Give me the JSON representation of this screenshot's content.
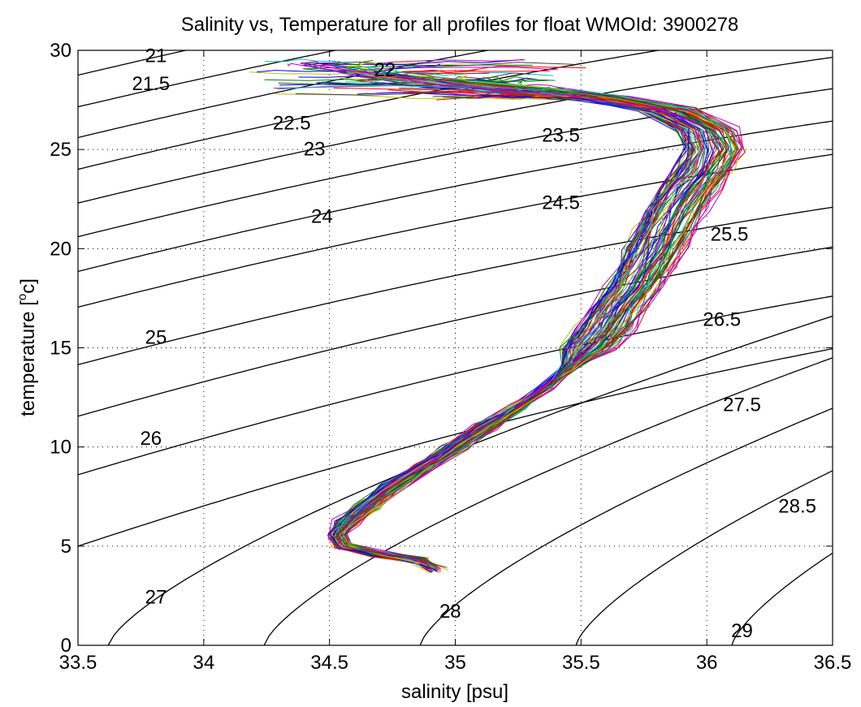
{
  "chart_data": {
    "type": "line",
    "title": "Salinity vs, Temperature for all profiles for float WMOId: 3900278",
    "xlabel": "salinity [psu]",
    "ylabel_main": "temperature [",
    "ylabel_sup": "o",
    "ylabel_end": "c]",
    "xlim": [
      33.5,
      36.5
    ],
    "ylim": [
      0,
      30
    ],
    "x_ticks": [
      33.5,
      34,
      34.5,
      35,
      35.5,
      36,
      36.5
    ],
    "x_tick_labels": [
      "33.5",
      "34",
      "34.5",
      "35",
      "35.5",
      "36",
      "36.5"
    ],
    "y_ticks": [
      0,
      5,
      10,
      15,
      20,
      25,
      30
    ],
    "y_tick_labels": [
      "0",
      "5",
      "10",
      "15",
      "20",
      "25",
      "30"
    ],
    "grid": true,
    "grid_style": "dotted",
    "profile_colors": [
      "#0000ff",
      "#008000",
      "#ff0000",
      "#00bfbf",
      "#bf00bf",
      "#bfbf00",
      "#404040"
    ],
    "profile_count": 84,
    "profile_mean_curve": {
      "temperature": [
        3.8,
        4.3,
        4.6,
        5.0,
        5.5,
        6.2,
        7.0,
        8.0,
        9.0,
        10.0,
        11.0,
        12.0,
        13.0,
        14.0,
        15.0,
        16.0,
        17.0,
        18.0,
        19.0,
        20.0,
        21.0,
        22.0,
        23.0,
        24.0,
        25.0,
        26.0,
        27.0,
        27.6,
        28.0,
        28.4,
        28.8,
        29.2
      ],
      "salinity": [
        34.93,
        34.85,
        34.7,
        34.55,
        34.53,
        34.57,
        34.65,
        34.75,
        34.88,
        35.0,
        35.12,
        35.25,
        35.36,
        35.45,
        35.53,
        35.6,
        35.65,
        35.71,
        35.76,
        35.8,
        35.84,
        35.88,
        35.93,
        35.99,
        36.03,
        36.0,
        35.85,
        35.6,
        35.3,
        35.0,
        34.7,
        34.5
      ]
    },
    "isopycnals": [
      {
        "label": "21",
        "s0": 33.5,
        "t0": 28.75,
        "slope": 3.0,
        "label_s": 33.81,
        "label_t": 29.4
      },
      {
        "label": "21.5",
        "s0": 33.5,
        "t0": 27.15,
        "slope": 3.0,
        "label_s": 33.79,
        "label_t": 28.0
      },
      {
        "label": "22",
        "s0": 33.5,
        "t0": 25.6,
        "slope": 3.05,
        "label_s": 34.72,
        "label_t": 28.7
      },
      {
        "label": "22.5",
        "s0": 33.5,
        "t0": 24.0,
        "slope": 3.1,
        "label_s": 34.35,
        "label_t": 26.0
      },
      {
        "label": "23",
        "s0": 33.5,
        "t0": 22.3,
        "slope": 3.1,
        "label_s": 34.44,
        "label_t": 24.7
      },
      {
        "label": "23.5",
        "s0": 33.5,
        "t0": 20.6,
        "slope": 3.15,
        "label_s": 35.42,
        "label_t": 25.4
      },
      {
        "label": "24",
        "s0": 33.5,
        "t0": 18.85,
        "slope": 3.2,
        "label_s": 34.47,
        "label_t": 21.3
      },
      {
        "label": "24.5",
        "s0": 33.5,
        "t0": 17.05,
        "slope": 3.25,
        "label_s": 35.42,
        "label_t": 22.0
      },
      {
        "label": "25",
        "s0": 33.5,
        "t0": 14.15,
        "slope": 3.35,
        "label_s": 33.81,
        "label_t": 15.2
      },
      {
        "label": "25.5",
        "s0": 33.5,
        "t0": 11.55,
        "slope": 3.6,
        "label_s": 36.09,
        "label_t": 20.4
      },
      {
        "label": "26",
        "s0": 33.5,
        "t0": 8.6,
        "slope": 3.8,
        "label_s": 33.79,
        "label_t": 10.1
      },
      {
        "label": "26.5",
        "s0": 33.5,
        "t0": 5.0,
        "slope": 4.2,
        "label_s": 36.06,
        "label_t": 16.1
      },
      {
        "label": "27",
        "s0": 33.62,
        "t0": 0.0,
        "slope": 5.0,
        "label_s": 33.81,
        "label_t": 2.1
      },
      {
        "label": "27.5",
        "s0": 34.24,
        "t0": 0.0,
        "slope": 5.2,
        "label_s": 36.14,
        "label_t": 11.8
      },
      {
        "label": "28",
        "s0": 34.86,
        "t0": 0.0,
        "slope": 5.4,
        "label_s": 34.98,
        "label_t": 1.4
      },
      {
        "label": "28.5",
        "s0": 35.48,
        "t0": 0.0,
        "slope": 5.6,
        "label_s": 36.36,
        "label_t": 6.7
      },
      {
        "label": "29",
        "s0": 36.1,
        "t0": 0.0,
        "slope": 5.8,
        "label_s": 36.14,
        "label_t": 0.4
      }
    ]
  }
}
